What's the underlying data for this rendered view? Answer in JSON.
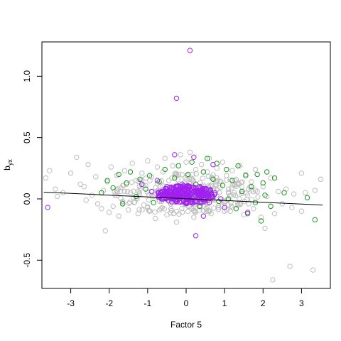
{
  "chart_data": {
    "type": "scatter",
    "xlabel": "Factor 5",
    "ylabel": "b",
    "ylabel_subscript": "yx",
    "xlim": [
      -3.75,
      3.75
    ],
    "ylim": [
      -0.73,
      1.28
    ],
    "x_ticks": [
      -3,
      -2,
      -1,
      0,
      1,
      2,
      3
    ],
    "y_ticks": [
      -0.5,
      0.0,
      0.5,
      1.0
    ],
    "y_tick_labels": [
      "-0.5",
      "0.0",
      "0.5",
      "1.0"
    ],
    "grid": false,
    "legend": "none",
    "colors": {
      "gray": "#bebebe",
      "green": "#1e961e",
      "purple": "#a020f0",
      "line": "#000000"
    },
    "regression_line": {
      "x": [
        -3.7,
        3.55
      ],
      "y": [
        0.055,
        -0.05
      ]
    },
    "series": [
      {
        "color": "gray",
        "points": [
          [
            -3.65,
            0.17
          ],
          [
            -3.55,
            0.23
          ],
          [
            -3.4,
            0.08
          ],
          [
            -3.35,
            0.02
          ],
          [
            -3.2,
            0.05
          ],
          [
            -3.0,
            0.21
          ],
          [
            -2.85,
            0.34
          ],
          [
            -2.75,
            0.12
          ],
          [
            -2.65,
            0.1
          ],
          [
            -2.6,
            -0.01
          ],
          [
            -2.55,
            0.28
          ],
          [
            -2.45,
            0.03
          ],
          [
            -2.35,
            0.18
          ],
          [
            -2.3,
            -0.04
          ],
          [
            -2.2,
            -0.08
          ],
          [
            -2.15,
            0.07
          ],
          [
            -2.1,
            -0.26
          ],
          [
            -2.05,
            0.14
          ],
          [
            -2.0,
            -0.11
          ],
          [
            -1.95,
            0.26
          ],
          [
            -1.9,
            -0.06
          ],
          [
            -1.85,
            0.03
          ],
          [
            -1.8,
            0.19
          ],
          [
            -1.75,
            -0.14
          ],
          [
            -1.7,
            0.09
          ],
          [
            -1.65,
            -0.02
          ],
          [
            -1.6,
            0.23
          ],
          [
            -1.55,
            0.12
          ],
          [
            -1.5,
            -0.09
          ],
          [
            -1.45,
            0.05
          ],
          [
            -1.4,
            0.29
          ],
          [
            -1.35,
            -0.03
          ],
          [
            -1.3,
            0.15
          ],
          [
            -1.25,
            -0.12
          ],
          [
            -1.2,
            0.08
          ],
          [
            -1.15,
            0.21
          ],
          [
            -1.1,
            -0.05
          ],
          [
            -1.05,
            0.11
          ],
          [
            -1.0,
            0.31
          ],
          [
            -0.95,
            -0.1
          ],
          [
            -0.9,
            0.18
          ],
          [
            -0.85,
            0.02
          ],
          [
            -0.8,
            -0.16
          ],
          [
            -0.75,
            0.26
          ],
          [
            -0.7,
            0.07
          ],
          [
            -0.65,
            -0.08
          ],
          [
            -0.6,
            0.22
          ],
          [
            -0.55,
            0.33
          ],
          [
            -0.5,
            -0.13
          ],
          [
            -0.45,
            0.15
          ],
          [
            -0.4,
            -0.04
          ],
          [
            -0.35,
            0.27
          ],
          [
            -0.3,
            0.09
          ],
          [
            -0.25,
            -0.19
          ],
          [
            -0.2,
            0.2
          ],
          [
            -0.15,
            0.36
          ],
          [
            -0.1,
            -0.11
          ],
          [
            -0.05,
            0.13
          ],
          [
            0.0,
            0.3
          ],
          [
            0.05,
            -0.06
          ],
          [
            0.1,
            0.38
          ],
          [
            0.15,
            0.16
          ],
          [
            0.2,
            -0.15
          ],
          [
            0.25,
            0.24
          ],
          [
            0.3,
            0.06
          ],
          [
            0.35,
            -0.09
          ],
          [
            0.4,
            0.28
          ],
          [
            0.45,
            0.11
          ],
          [
            0.5,
            -0.03
          ],
          [
            0.55,
            0.22
          ],
          [
            0.6,
            0.33
          ],
          [
            0.65,
            -0.12
          ],
          [
            0.7,
            0.17
          ],
          [
            0.75,
            0.04
          ],
          [
            0.8,
            0.25
          ],
          [
            0.85,
            -0.07
          ],
          [
            0.9,
            0.14
          ],
          [
            0.95,
            0.3
          ],
          [
            1.0,
            -0.02
          ],
          [
            1.05,
            0.19
          ],
          [
            1.1,
            0.08
          ],
          [
            1.15,
            -0.1
          ],
          [
            1.2,
            0.23
          ],
          [
            1.25,
            0.05
          ],
          [
            1.3,
            0.16
          ],
          [
            1.35,
            -0.05
          ],
          [
            1.4,
            0.27
          ],
          [
            1.45,
            0.1
          ],
          [
            1.5,
            -0.13
          ],
          [
            1.55,
            0.2
          ],
          [
            1.6,
            0.03
          ],
          [
            1.7,
            0.14
          ],
          [
            1.75,
            -0.08
          ],
          [
            1.8,
            0.24
          ],
          [
            1.85,
            0.06
          ],
          [
            1.95,
            -0.15
          ],
          [
            2.0,
            0.1
          ],
          [
            2.05,
            -0.24
          ],
          [
            2.1,
            0.02
          ],
          [
            2.2,
            0.17
          ],
          [
            2.25,
            -0.66
          ],
          [
            2.3,
            -0.12
          ],
          [
            2.4,
            0.06
          ],
          [
            2.5,
            -0.04
          ],
          [
            2.6,
            0.08
          ],
          [
            2.7,
            -0.55
          ],
          [
            2.75,
            -0.07
          ],
          [
            2.8,
            0.04
          ],
          [
            3.0,
            0.21
          ],
          [
            3.0,
            -0.1
          ],
          [
            3.1,
            0.05
          ],
          [
            3.3,
            -0.58
          ],
          [
            3.35,
            0.07
          ],
          [
            3.5,
            0.16
          ]
        ]
      },
      {
        "color": "green",
        "points": [
          [
            -2.2,
            0.05
          ],
          [
            -2.05,
            0.15
          ],
          [
            -1.9,
            0.09
          ],
          [
            -1.75,
            0.2
          ],
          [
            -1.65,
            -0.04
          ],
          [
            -1.55,
            0.13
          ],
          [
            -1.45,
            0.22
          ],
          [
            -1.3,
            0.02
          ],
          [
            -1.2,
            0.16
          ],
          [
            -1.05,
            0.08
          ],
          [
            -0.95,
            0.19
          ],
          [
            -0.85,
            -0.03
          ],
          [
            -0.7,
            0.14
          ],
          [
            -0.55,
            0.24
          ],
          [
            -0.45,
            0.04
          ],
          [
            -0.3,
            0.17
          ],
          [
            -0.2,
            0.27
          ],
          [
            -0.1,
            0.09
          ],
          [
            0.05,
            0.2
          ],
          [
            0.15,
            0.3
          ],
          [
            0.25,
            0.12
          ],
          [
            0.35,
            -0.06
          ],
          [
            0.45,
            0.22
          ],
          [
            0.55,
            0.33
          ],
          [
            0.6,
            0.05
          ],
          [
            0.7,
            0.16
          ],
          [
            0.8,
            0.29
          ],
          [
            0.85,
            -0.02
          ],
          [
            0.95,
            0.11
          ],
          [
            1.05,
            0.24
          ],
          [
            1.1,
            0.0
          ],
          [
            1.2,
            0.15
          ],
          [
            1.3,
            -0.08
          ],
          [
            1.35,
            0.27
          ],
          [
            1.45,
            0.06
          ],
          [
            1.55,
            0.19
          ],
          [
            1.6,
            -0.12
          ],
          [
            1.7,
            0.1
          ],
          [
            1.8,
            -0.03
          ],
          [
            1.85,
            0.2
          ],
          [
            1.95,
            -0.18
          ],
          [
            2.0,
            0.13
          ],
          [
            2.05,
            0.03
          ],
          [
            2.1,
            0.22
          ],
          [
            2.2,
            -0.06
          ],
          [
            2.3,
            0.17
          ],
          [
            2.55,
            0.05
          ],
          [
            3.15,
            0.01
          ],
          [
            3.35,
            -0.17
          ]
        ]
      },
      {
        "color": "purple",
        "points": [
          [
            0.1,
            1.21
          ],
          [
            -0.25,
            0.82
          ],
          [
            -0.3,
            0.36
          ],
          [
            0.2,
            0.34
          ],
          [
            0.7,
            0.28
          ],
          [
            -3.6,
            -0.07
          ],
          [
            0.25,
            -0.3
          ],
          [
            0.45,
            -0.14
          ],
          [
            -1.15,
            0.12
          ],
          [
            -0.9,
            0.06
          ],
          [
            -0.75,
            0.15
          ],
          [
            -0.6,
            0.03
          ],
          [
            -0.5,
            0.1
          ],
          [
            -0.35,
            0.0
          ],
          [
            -0.25,
            0.07
          ],
          [
            -0.15,
            0.03
          ],
          [
            -0.1,
            0.12
          ],
          [
            0.0,
            0.01
          ],
          [
            0.05,
            0.06
          ],
          [
            0.15,
            -0.02
          ],
          [
            0.2,
            0.09
          ],
          [
            0.3,
            0.04
          ],
          [
            0.4,
            0.0
          ],
          [
            0.5,
            0.08
          ],
          [
            0.6,
            -0.03
          ],
          [
            0.75,
            0.05
          ],
          [
            0.9,
            0.0
          ],
          [
            1.0,
            -0.07
          ],
          [
            1.6,
            -0.11
          ]
        ]
      }
    ]
  }
}
